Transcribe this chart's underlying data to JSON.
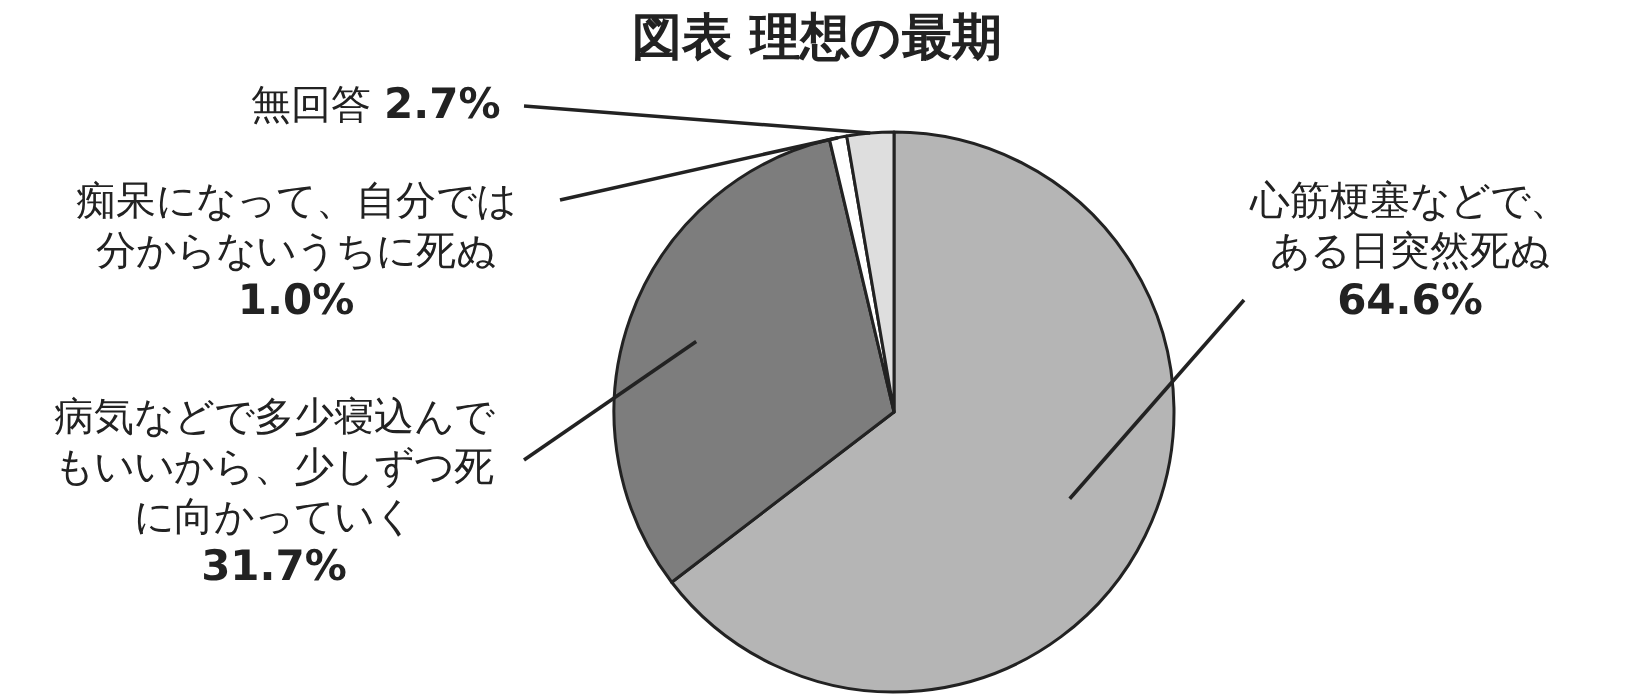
{
  "chart_data": {
    "type": "pie",
    "title": "図表 理想の最期",
    "categories": [
      "心筋梗塞などで、ある日突然死ぬ",
      "病気などで多少寝込んでもいいから、少しずつ死に向かっていく",
      "痴呆になって、自分では分からないうちに死ぬ",
      "無回答"
    ],
    "values": [
      64.6,
      31.7,
      1.0,
      2.7
    ],
    "colors": [
      "#b5b5b5",
      "#7d7d7d",
      "#ffffff",
      "#dedede"
    ],
    "value_labels": [
      "64.6%",
      "31.7%",
      "1.0%",
      "2.7%"
    ]
  }
}
